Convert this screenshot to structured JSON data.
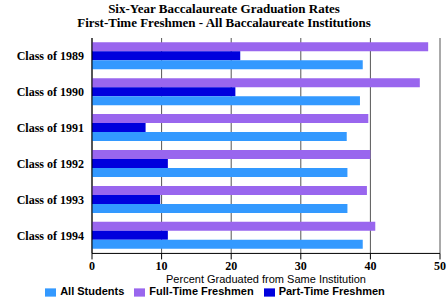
{
  "chart_data": {
    "type": "bar",
    "orientation": "horizontal",
    "title": "Six-Year Baccalaureate Graduation Rates",
    "subtitle": "First-Time Freshmen - All Baccalaureate Institutions",
    "x_label": "Percent Graduated from Same Institution",
    "categories": [
      "Class of 1989",
      "Class of 1990",
      "Class of 1991",
      "Class of 1992",
      "Class of 1993",
      "Class of 1994"
    ],
    "series": [
      {
        "name": "Full-Time Freshmen",
        "color": "#9966ee",
        "values": [
          48.3,
          47.1,
          39.7,
          40.0,
          39.5,
          40.7
        ]
      },
      {
        "name": "Part-Time Freshmen",
        "color": "#0000dd",
        "values": [
          21.3,
          20.6,
          7.7,
          10.9,
          9.8,
          10.9
        ]
      },
      {
        "name": "All Students",
        "color": "#3399ff",
        "values": [
          38.9,
          38.5,
          36.6,
          36.7,
          36.7,
          38.9
        ]
      }
    ],
    "xlim": [
      0,
      50
    ],
    "xticks": [
      0,
      10,
      20,
      30,
      40,
      50
    ],
    "grid": true,
    "legend": "bottom"
  }
}
